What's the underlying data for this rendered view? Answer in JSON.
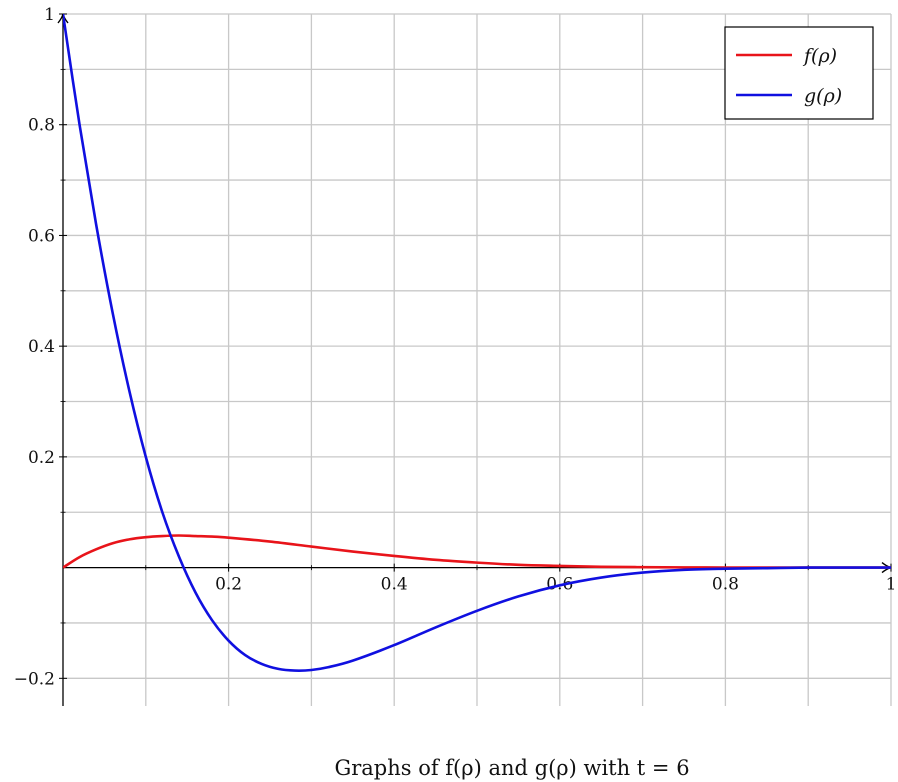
{
  "chart_data": {
    "type": "line",
    "title": "",
    "caption": "Graphs of f(ρ) and g(ρ) with t = 6",
    "xlabel": "",
    "ylabel": "",
    "xlim": [
      0,
      1
    ],
    "ylim": [
      -0.25,
      1
    ],
    "grid": true,
    "legend_position": "top-right",
    "x_major_ticks": [
      0.2,
      0.4,
      0.6,
      0.8,
      1
    ],
    "x_tick_labels": [
      "0.2",
      "0.4",
      "0.6",
      "0.8",
      "1"
    ],
    "x_minor_ticks": [
      0.1,
      0.3,
      0.5,
      0.7,
      0.9
    ],
    "y_major_ticks": [
      -0.2,
      0.2,
      0.4,
      0.6,
      0.8,
      1
    ],
    "y_tick_labels": [
      "−0.2",
      "0.2",
      "0.4",
      "0.6",
      "0.8",
      "1"
    ],
    "y_minor_ticks": [
      -0.1,
      0.1,
      0.3,
      0.5,
      0.7,
      0.9
    ],
    "series": [
      {
        "name": "f(ρ)",
        "color": "#e8141a",
        "x": [
          0,
          0.02,
          0.04,
          0.06,
          0.08,
          0.1,
          0.12,
          0.14,
          0.16,
          0.18,
          0.2,
          0.25,
          0.3,
          0.35,
          0.4,
          0.45,
          0.5,
          0.55,
          0.6,
          0.65,
          0.7,
          0.75,
          0.8,
          0.85,
          0.9,
          0.95,
          1
        ],
        "y": [
          0,
          0.019,
          0.033,
          0.044,
          0.051,
          0.055,
          0.057,
          0.058,
          0.057,
          0.056,
          0.054,
          0.047,
          0.038,
          0.029,
          0.021,
          0.014,
          0.009,
          0.005,
          0.003,
          0.0015,
          0.0008,
          0.0004,
          0.0002,
          0.0001,
          0,
          0,
          0
        ]
      },
      {
        "name": "g(ρ)",
        "color": "#1010e0",
        "x": [
          0,
          0.02,
          0.04,
          0.06,
          0.08,
          0.1,
          0.12,
          0.14,
          0.16,
          0.18,
          0.2,
          0.22,
          0.24,
          0.26,
          0.28,
          0.3,
          0.32,
          0.35,
          0.4,
          0.45,
          0.5,
          0.55,
          0.6,
          0.65,
          0.7,
          0.75,
          0.8,
          0.85,
          0.9,
          0.95,
          1
        ],
        "y": [
          1,
          0.8,
          0.62,
          0.46,
          0.32,
          0.2,
          0.1,
          0.02,
          -0.045,
          -0.095,
          -0.132,
          -0.158,
          -0.174,
          -0.183,
          -0.186,
          -0.185,
          -0.18,
          -0.168,
          -0.14,
          -0.108,
          -0.078,
          -0.052,
          -0.032,
          -0.018,
          -0.009,
          -0.004,
          -0.002,
          -0.001,
          0,
          0,
          0
        ]
      }
    ]
  }
}
